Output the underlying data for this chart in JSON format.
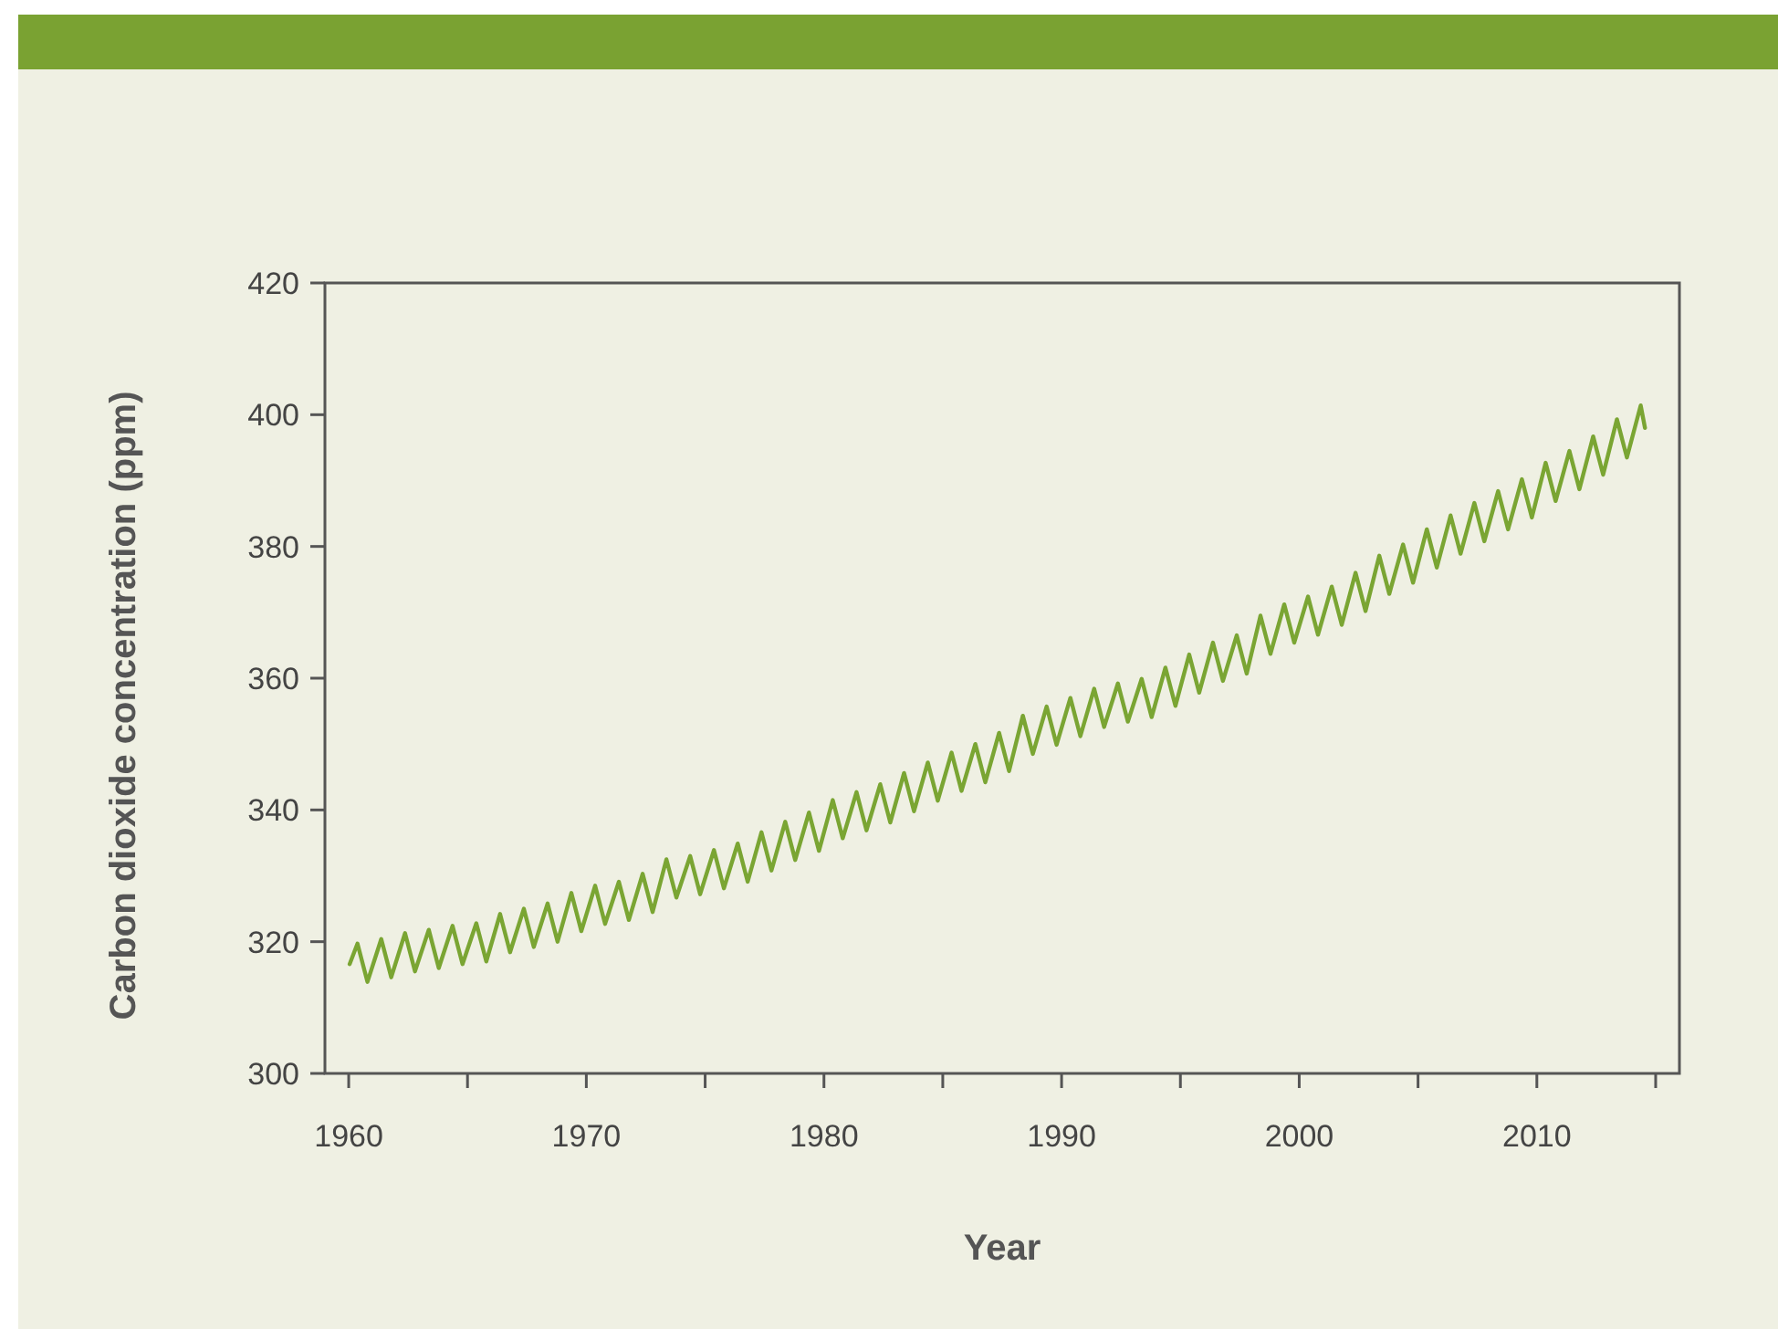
{
  "chart_data": {
    "type": "line",
    "xlabel": "Year",
    "ylabel": "Carbon dioxide concentration (ppm)",
    "color": "#7aa533",
    "xlim": [
      1959,
      2016
    ],
    "ylim": [
      300,
      420
    ],
    "xticks": [
      1960,
      {
        "value": 1965,
        "label": null
      },
      1970,
      {
        "value": 1975,
        "label": null
      },
      1980,
      {
        "value": 1985,
        "label": null
      },
      1990,
      {
        "value": 1995,
        "label": null
      },
      2000,
      {
        "value": 2005,
        "label": null
      },
      2010,
      {
        "value": 2015,
        "label": null
      }
    ],
    "yticks": [
      300,
      320,
      340,
      360,
      380,
      400,
      420
    ],
    "x": [
      1960.04,
      1960.37,
      1960.79,
      1961.37,
      1961.79,
      1962.37,
      1962.79,
      1963.37,
      1963.79,
      1964.37,
      1964.79,
      1965.37,
      1965.79,
      1966.37,
      1966.79,
      1967.37,
      1967.79,
      1968.37,
      1968.79,
      1969.37,
      1969.79,
      1970.37,
      1970.79,
      1971.37,
      1971.79,
      1972.37,
      1972.79,
      1973.37,
      1973.79,
      1974.37,
      1974.79,
      1975.37,
      1975.79,
      1976.37,
      1976.79,
      1977.37,
      1977.79,
      1978.37,
      1978.79,
      1979.37,
      1979.79,
      1980.37,
      1980.79,
      1981.37,
      1981.79,
      1982.37,
      1982.79,
      1983.37,
      1983.79,
      1984.37,
      1984.79,
      1985.37,
      1985.79,
      1986.37,
      1986.79,
      1987.37,
      1987.79,
      1988.37,
      1988.79,
      1989.37,
      1989.79,
      1990.37,
      1990.79,
      1991.37,
      1991.79,
      1992.37,
      1992.79,
      1993.37,
      1993.79,
      1994.37,
      1994.79,
      1995.37,
      1995.79,
      1996.37,
      1996.79,
      1997.37,
      1997.79,
      1998.37,
      1998.79,
      1999.37,
      1999.79,
      2000.37,
      2000.79,
      2001.37,
      2001.79,
      2002.37,
      2002.79,
      2003.37,
      2003.79,
      2004.37,
      2004.79,
      2005.37,
      2005.79,
      2006.37,
      2006.79,
      2007.37,
      2007.79,
      2008.37,
      2008.79,
      2009.37,
      2009.79,
      2010.37,
      2010.79,
      2011.37,
      2011.79,
      2012.37,
      2012.79,
      2013.37,
      2013.79,
      2014.37,
      2014.55
    ],
    "values": [
      316.6,
      319.7,
      313.9,
      320.4,
      314.6,
      321.3,
      315.5,
      321.8,
      316.0,
      322.4,
      316.6,
      322.8,
      317.0,
      324.2,
      318.4,
      325.0,
      319.2,
      325.8,
      320.0,
      327.4,
      321.6,
      328.5,
      322.7,
      329.1,
      323.3,
      330.3,
      324.5,
      332.5,
      326.7,
      333.0,
      327.2,
      333.9,
      328.1,
      334.9,
      329.1,
      336.6,
      330.8,
      338.2,
      332.4,
      339.6,
      333.8,
      341.5,
      335.7,
      342.7,
      336.9,
      343.9,
      338.1,
      345.6,
      339.8,
      347.2,
      341.4,
      348.7,
      342.9,
      350.0,
      344.2,
      351.7,
      345.9,
      354.3,
      348.5,
      355.7,
      349.9,
      357.0,
      351.2,
      358.4,
      352.6,
      359.2,
      353.4,
      359.9,
      354.1,
      361.6,
      355.8,
      363.6,
      357.8,
      365.4,
      359.6,
      366.5,
      360.7,
      369.5,
      363.7,
      371.2,
      365.4,
      372.4,
      366.6,
      373.9,
      368.1,
      376.0,
      370.2,
      378.6,
      372.8,
      380.3,
      374.5,
      382.6,
      376.8,
      384.7,
      378.9,
      386.6,
      380.8,
      388.4,
      382.6,
      390.2,
      384.4,
      392.7,
      386.9,
      394.5,
      388.7,
      396.7,
      390.9,
      399.3,
      393.5,
      401.4,
      398.0
    ]
  }
}
